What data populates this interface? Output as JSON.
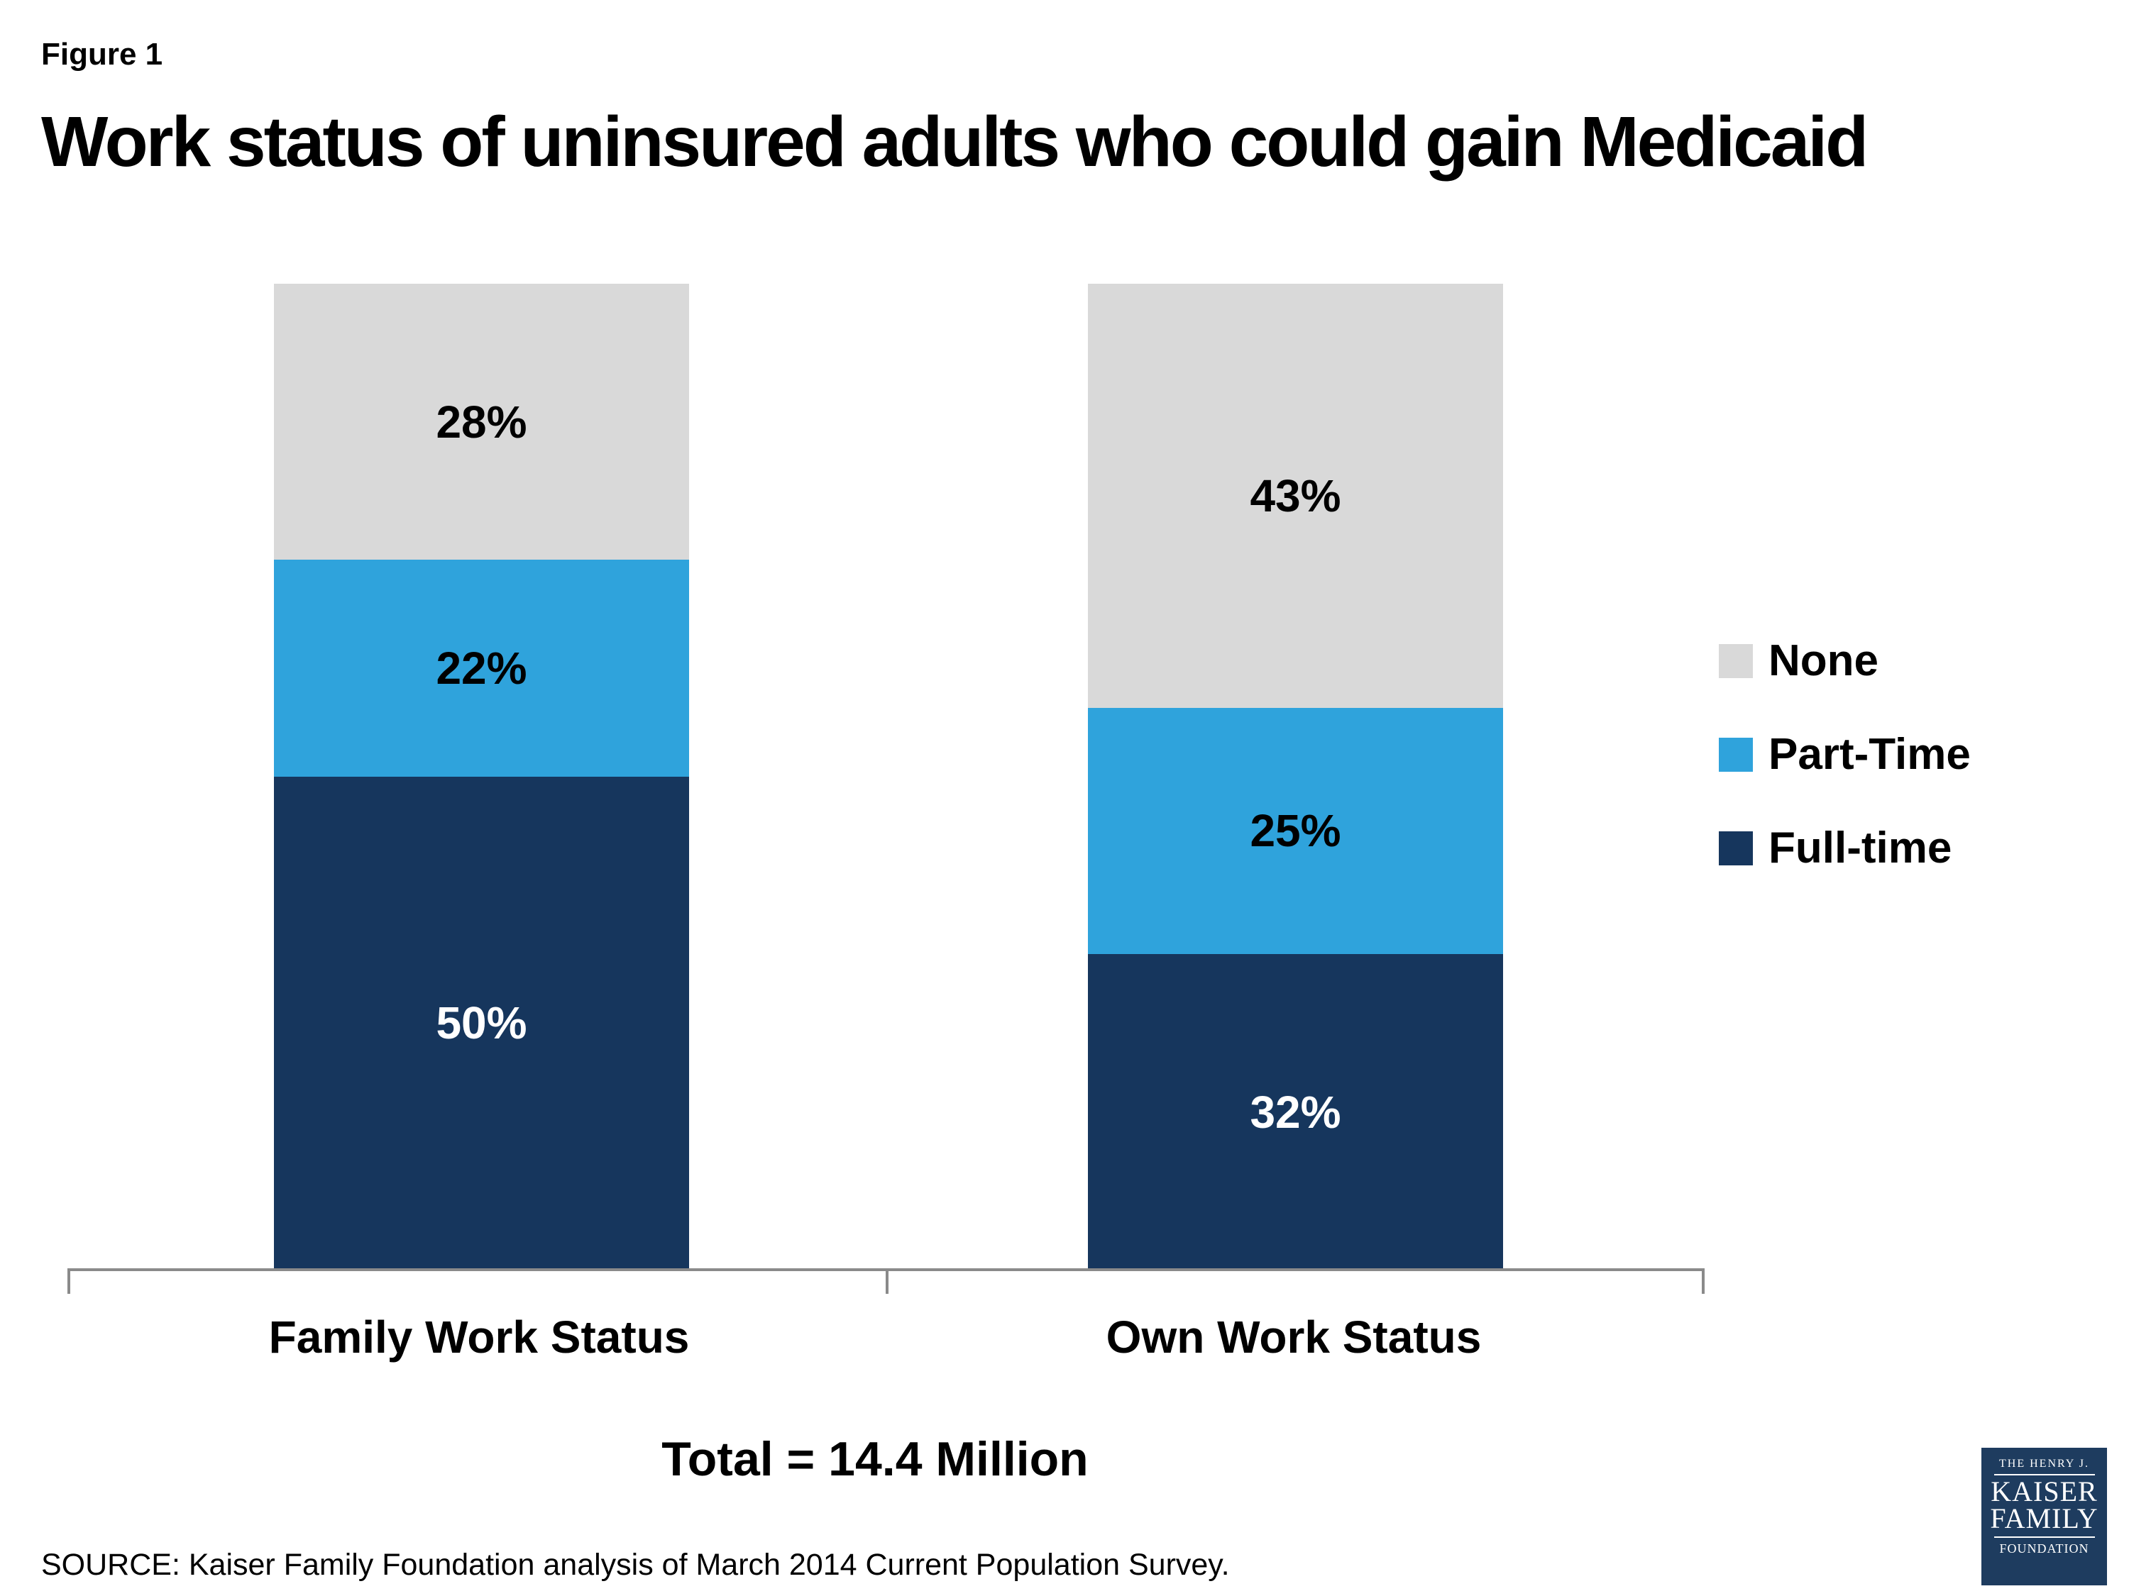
{
  "header": {
    "figure_label": "Figure 1"
  },
  "chart_data": {
    "type": "bar",
    "stacked": true,
    "title": "Work status of uninsured adults who could gain Medicaid",
    "categories": [
      "Family Work Status",
      "Own Work Status"
    ],
    "series": [
      {
        "name": "None",
        "color": "#d9d9d9",
        "label_color": "#000000",
        "values": [
          28,
          43
        ]
      },
      {
        "name": "Part-Time",
        "color": "#2fa3dc",
        "label_color": "#000000",
        "values": [
          22,
          25
        ]
      },
      {
        "name": "Full-time",
        "color": "#16365d",
        "label_color": "#ffffff",
        "values": [
          50,
          32
        ]
      }
    ],
    "value_suffix": "%",
    "ylim": [
      0,
      100
    ],
    "grid": false,
    "legend_position": "right",
    "total_label": "Total = 14.4 Million"
  },
  "source": "SOURCE: Kaiser Family Foundation analysis of March 2014 Current Population Survey.",
  "logo": {
    "line1": "THE HENRY J.",
    "line2": "KAISER",
    "line3": "FAMILY",
    "line4": "FOUNDATION"
  }
}
